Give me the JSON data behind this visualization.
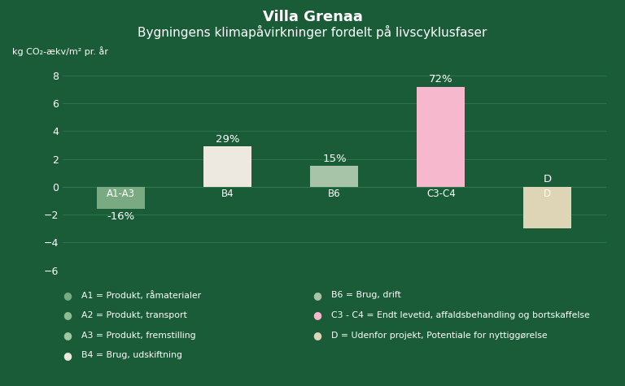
{
  "title": "Villa Grenaa",
  "subtitle": "Bygningens klimapåvirkninger fordelt på livscyklusfaser",
  "ylabel": "kg CO₂-ækv/m² pr. år",
  "background_color": "#1a5c38",
  "bar_categories": [
    "A1-A3",
    "B4",
    "B6",
    "C3-C4",
    "D"
  ],
  "bar_values": [
    -1.6,
    2.9,
    1.5,
    7.2,
    -3.0
  ],
  "bar_labels": [
    "-16%",
    "29%",
    "15%",
    "72%",
    "D"
  ],
  "bar_colors": [
    "#7aaa82",
    "#ede8e0",
    "#a8c4a8",
    "#f5b8cc",
    "#ddd5b5"
  ],
  "bar_width": 0.45,
  "ylim": [
    -6,
    9
  ],
  "yticks": [
    -6,
    -4,
    -2,
    0,
    2,
    4,
    6,
    8
  ],
  "grid_color": "#2d7a4a",
  "text_color": "#ffffff",
  "label_fontsize": 9.5,
  "cat_fontsize": 8.5,
  "title_fontsize": 13,
  "subtitle_fontsize": 11,
  "ylabel_fontsize": 8,
  "tick_fontsize": 9,
  "legend_labels_left": [
    "A1 = Produkt, råmaterialer",
    "A2 = Produkt, transport",
    "A3 = Produkt, fremstilling",
    "B4 = Brug, udskiftning"
  ],
  "legend_colors_left": [
    "#7aaa82",
    "#90ba90",
    "#a0c8a0",
    "#ede8e0"
  ],
  "legend_labels_right": [
    "B6 = Brug, drift",
    "C3 - C4 = Endt levetid, affaldsbehandling og bortskaffelse",
    "D = Udenfor projekt, Potentiale for nyttiggørelse"
  ],
  "legend_colors_right": [
    "#a8c4a8",
    "#f5b8cc",
    "#ddd5b5"
  ]
}
